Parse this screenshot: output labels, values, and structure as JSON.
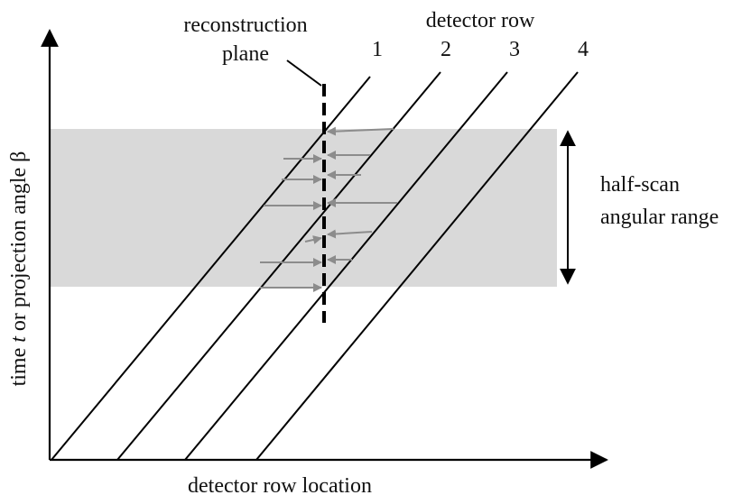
{
  "labels": {
    "reconstruction_plane_line1": "reconstruction",
    "reconstruction_plane_line2": "plane",
    "detector_row_title": "detector row",
    "row_numbers": [
      "1",
      "2",
      "3",
      "4"
    ],
    "halfscan_line1": "half-scan",
    "halfscan_line2": "angular range",
    "y_axis_prefix": "time ",
    "y_axis_var": "t",
    "y_axis_rest": " or projection angle β",
    "x_axis": "detector row location"
  },
  "colors": {
    "axis": "#000000",
    "band": "#d9d9d9",
    "arrows": "#8c8c8c",
    "lines": "#000000"
  },
  "icons": {
    "double_arrow": "vertical-double-arrow-icon"
  }
}
